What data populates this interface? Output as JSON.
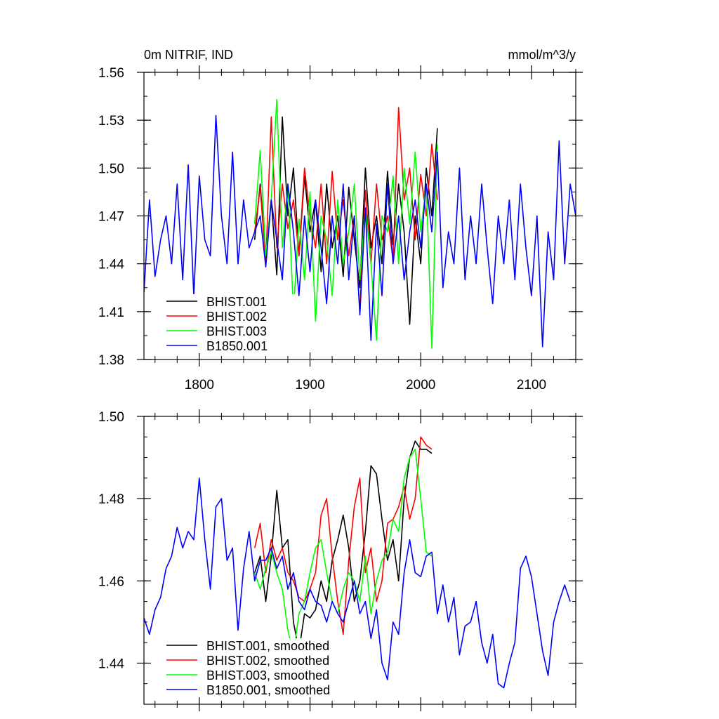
{
  "chart_data": [
    {
      "type": "line",
      "title_left": "0m NITRIF, IND",
      "title_right": "mmol/m^3/y",
      "xlim": [
        1750,
        2140
      ],
      "ylim": [
        1.38,
        1.56
      ],
      "x_ticks": [
        1800,
        1900,
        2000,
        2100
      ],
      "x_tick_labels": [
        "1800",
        "1900",
        "2000",
        "2100"
      ],
      "y_ticks": [
        1.38,
        1.41,
        1.44,
        1.47,
        1.5,
        1.53,
        1.56
      ],
      "y_tick_labels": [
        "1.38",
        "1.41",
        "1.44",
        "1.47",
        "1.50",
        "1.53",
        "1.56"
      ],
      "legend": {
        "placement": "bottom-left"
      },
      "grid": false,
      "series": [
        {
          "name": "BHIST.001",
          "color": "#000000",
          "x": [
            1850,
            1855,
            1860,
            1865,
            1870,
            1875,
            1880,
            1885,
            1890,
            1895,
            1900,
            1905,
            1910,
            1915,
            1920,
            1925,
            1930,
            1935,
            1940,
            1945,
            1950,
            1955,
            1960,
            1965,
            1970,
            1975,
            1980,
            1985,
            1990,
            1995,
            2000,
            2005,
            2010,
            2015
          ],
          "y": [
            1.455,
            1.49,
            1.445,
            1.48,
            1.433,
            1.532,
            1.47,
            1.5,
            1.445,
            1.495,
            1.46,
            1.48,
            1.435,
            1.49,
            1.45,
            1.47,
            1.432,
            1.488,
            1.455,
            1.425,
            1.5,
            1.45,
            1.47,
            1.44,
            1.498,
            1.452,
            1.49,
            1.46,
            1.402,
            1.47,
            1.44,
            1.5,
            1.47,
            1.525
          ]
        },
        {
          "name": "BHIST.002",
          "color": "#ff0000",
          "x": [
            1850,
            1855,
            1860,
            1865,
            1870,
            1875,
            1880,
            1885,
            1890,
            1895,
            1900,
            1905,
            1910,
            1915,
            1920,
            1925,
            1930,
            1935,
            1940,
            1945,
            1950,
            1955,
            1960,
            1965,
            1970,
            1975,
            1980,
            1985,
            1990,
            1995,
            2000,
            2005,
            2010,
            2015
          ],
          "y": [
            1.46,
            1.488,
            1.44,
            1.532,
            1.45,
            1.49,
            1.462,
            1.48,
            1.445,
            1.5,
            1.47,
            1.45,
            1.49,
            1.44,
            1.498,
            1.455,
            1.48,
            1.445,
            1.47,
            1.41,
            1.486,
            1.44,
            1.49,
            1.455,
            1.47,
            1.442,
            1.538,
            1.48,
            1.5,
            1.455,
            1.496,
            1.47,
            1.515,
            1.48
          ]
        },
        {
          "name": "BHIST.003",
          "color": "#00ff00",
          "x": [
            1850,
            1855,
            1860,
            1865,
            1870,
            1875,
            1880,
            1885,
            1890,
            1895,
            1900,
            1905,
            1910,
            1915,
            1920,
            1925,
            1930,
            1935,
            1940,
            1945,
            1950,
            1955,
            1960,
            1965,
            1970,
            1975,
            1980,
            1985,
            1990,
            1995,
            2000,
            2005,
            2010,
            2015
          ],
          "y": [
            1.465,
            1.511,
            1.445,
            1.48,
            1.543,
            1.45,
            1.49,
            1.41,
            1.468,
            1.43,
            1.485,
            1.404,
            1.47,
            1.455,
            1.42,
            1.48,
            1.44,
            1.46,
            1.49,
            1.43,
            1.475,
            1.44,
            1.392,
            1.47,
            1.46,
            1.495,
            1.44,
            1.5,
            1.465,
            1.51,
            1.46,
            1.49,
            1.387,
            1.515
          ]
        },
        {
          "name": "B1850.001",
          "color": "#0000ff",
          "x": [
            1750,
            1755,
            1760,
            1765,
            1770,
            1775,
            1780,
            1785,
            1790,
            1795,
            1800,
            1805,
            1810,
            1815,
            1820,
            1825,
            1830,
            1835,
            1840,
            1845,
            1850,
            1855,
            1860,
            1865,
            1870,
            1875,
            1880,
            1885,
            1890,
            1895,
            1900,
            1905,
            1910,
            1915,
            1920,
            1925,
            1930,
            1935,
            1940,
            1945,
            1950,
            1955,
            1960,
            1965,
            1970,
            1975,
            1980,
            1985,
            1990,
            1995,
            2000,
            2005,
            2010,
            2015,
            2020,
            2025,
            2030,
            2035,
            2040,
            2045,
            2050,
            2055,
            2060,
            2065,
            2070,
            2075,
            2080,
            2085,
            2090,
            2095,
            2100,
            2105,
            2110,
            2115,
            2120,
            2125,
            2130,
            2135,
            2140
          ],
          "y": [
            1.422,
            1.48,
            1.432,
            1.455,
            1.47,
            1.44,
            1.49,
            1.43,
            1.502,
            1.42,
            1.495,
            1.455,
            1.445,
            1.533,
            1.47,
            1.44,
            1.51,
            1.44,
            1.48,
            1.45,
            1.46,
            1.47,
            1.438,
            1.48,
            1.455,
            1.43,
            1.49,
            1.46,
            1.42,
            1.47,
            1.435,
            1.48,
            1.45,
            1.415,
            1.47,
            1.44,
            1.49,
            1.43,
            1.47,
            1.408,
            1.475,
            1.392,
            1.465,
            1.42,
            1.49,
            1.44,
            1.47,
            1.43,
            1.46,
            1.48,
            1.45,
            1.49,
            1.46,
            1.51,
            1.425,
            1.46,
            1.44,
            1.5,
            1.43,
            1.47,
            1.44,
            1.49,
            1.45,
            1.415,
            1.47,
            1.44,
            1.48,
            1.43,
            1.49,
            1.45,
            1.42,
            1.47,
            1.388,
            1.46,
            1.43,
            1.517,
            1.44,
            1.49,
            1.47
          ]
        }
      ]
    },
    {
      "type": "line",
      "xlim": [
        1750,
        2140
      ],
      "ylim": [
        1.43,
        1.5
      ],
      "x_ticks": [
        1800,
        1900,
        2000,
        2100
      ],
      "y_ticks": [
        1.44,
        1.46,
        1.48,
        1.5
      ],
      "y_tick_labels": [
        "1.44",
        "1.46",
        "1.48",
        "1.50"
      ],
      "legend": {
        "placement": "bottom-left"
      },
      "grid": false,
      "series": [
        {
          "name": "BHIST.001, smoothed",
          "color": "#000000",
          "x": [
            1850,
            1855,
            1860,
            1865,
            1870,
            1875,
            1880,
            1885,
            1890,
            1895,
            1900,
            1905,
            1910,
            1915,
            1920,
            1925,
            1930,
            1935,
            1940,
            1945,
            1950,
            1955,
            1960,
            1965,
            1970,
            1975,
            1980,
            1985,
            1990,
            1995,
            2000,
            2005,
            2010
          ],
          "y": [
            1.462,
            1.466,
            1.455,
            1.466,
            1.482,
            1.468,
            1.47,
            1.45,
            1.443,
            1.452,
            1.451,
            1.453,
            1.46,
            1.455,
            1.465,
            1.47,
            1.476,
            1.468,
            1.455,
            1.46,
            1.472,
            1.488,
            1.486,
            1.475,
            1.465,
            1.47,
            1.46,
            1.48,
            1.49,
            1.494,
            1.492,
            1.492,
            1.491
          ]
        },
        {
          "name": "BHIST.002, smoothed",
          "color": "#ff0000",
          "x": [
            1850,
            1855,
            1860,
            1865,
            1870,
            1875,
            1880,
            1885,
            1890,
            1895,
            1900,
            1905,
            1910,
            1915,
            1920,
            1925,
            1930,
            1935,
            1940,
            1945,
            1950,
            1955,
            1960,
            1965,
            1970,
            1975,
            1980,
            1985,
            1990,
            1995,
            2000,
            2005,
            2010
          ],
          "y": [
            1.468,
            1.474,
            1.462,
            1.47,
            1.465,
            1.468,
            1.462,
            1.46,
            1.456,
            1.455,
            1.458,
            1.462,
            1.476,
            1.48,
            1.466,
            1.455,
            1.447,
            1.465,
            1.478,
            1.485,
            1.462,
            1.468,
            1.455,
            1.46,
            1.474,
            1.475,
            1.478,
            1.483,
            1.475,
            1.48,
            1.495,
            1.493,
            1.492
          ]
        },
        {
          "name": "BHIST.003, smoothed",
          "color": "#00ff00",
          "x": [
            1850,
            1855,
            1860,
            1865,
            1870,
            1875,
            1880,
            1885,
            1890,
            1895,
            1900,
            1905,
            1910,
            1915,
            1920,
            1925,
            1930,
            1935,
            1940,
            1945,
            1950,
            1955,
            1960,
            1965,
            1970,
            1975,
            1980,
            1985,
            1990,
            1995,
            2000,
            2005,
            2010
          ],
          "y": [
            1.462,
            1.458,
            1.463,
            1.467,
            1.462,
            1.458,
            1.448,
            1.442,
            1.452,
            1.455,
            1.462,
            1.468,
            1.47,
            1.462,
            1.455,
            1.452,
            1.458,
            1.462,
            1.46,
            1.455,
            1.466,
            1.452,
            1.46,
            1.465,
            1.467,
            1.475,
            1.472,
            1.485,
            1.49,
            1.492,
            1.48,
            1.467,
            1.466
          ]
        },
        {
          "name": "B1850.001, smoothed",
          "color": "#0000ff",
          "x": [
            1750,
            1755,
            1760,
            1765,
            1770,
            1775,
            1780,
            1785,
            1790,
            1795,
            1800,
            1805,
            1810,
            1815,
            1820,
            1825,
            1830,
            1835,
            1840,
            1845,
            1850,
            1855,
            1860,
            1865,
            1870,
            1875,
            1880,
            1885,
            1890,
            1895,
            1900,
            1905,
            1910,
            1915,
            1920,
            1925,
            1930,
            1935,
            1940,
            1945,
            1950,
            1955,
            1960,
            1965,
            1970,
            1975,
            1980,
            1985,
            1990,
            1995,
            2000,
            2005,
            2010,
            2015,
            2020,
            2025,
            2030,
            2035,
            2040,
            2045,
            2050,
            2055,
            2060,
            2065,
            2070,
            2075,
            2080,
            2085,
            2090,
            2095,
            2100,
            2105,
            2110,
            2115,
            2120,
            2125,
            2130,
            2135
          ],
          "y": [
            1.451,
            1.447,
            1.453,
            1.456,
            1.463,
            1.466,
            1.473,
            1.468,
            1.472,
            1.47,
            1.485,
            1.47,
            1.458,
            1.478,
            1.48,
            1.465,
            1.468,
            1.448,
            1.463,
            1.472,
            1.46,
            1.465,
            1.465,
            1.468,
            1.463,
            1.466,
            1.458,
            1.462,
            1.455,
            1.453,
            1.458,
            1.455,
            1.454,
            1.45,
            1.455,
            1.452,
            1.45,
            1.455,
            1.46,
            1.452,
            1.455,
            1.446,
            1.453,
            1.44,
            1.436,
            1.45,
            1.447,
            1.462,
            1.47,
            1.462,
            1.461,
            1.466,
            1.467,
            1.452,
            1.459,
            1.45,
            1.456,
            1.442,
            1.449,
            1.45,
            1.455,
            1.445,
            1.44,
            1.447,
            1.435,
            1.434,
            1.44,
            1.445,
            1.463,
            1.466,
            1.461,
            1.452,
            1.443,
            1.437,
            1.45,
            1.455,
            1.459,
            1.455
          ]
        }
      ]
    }
  ]
}
